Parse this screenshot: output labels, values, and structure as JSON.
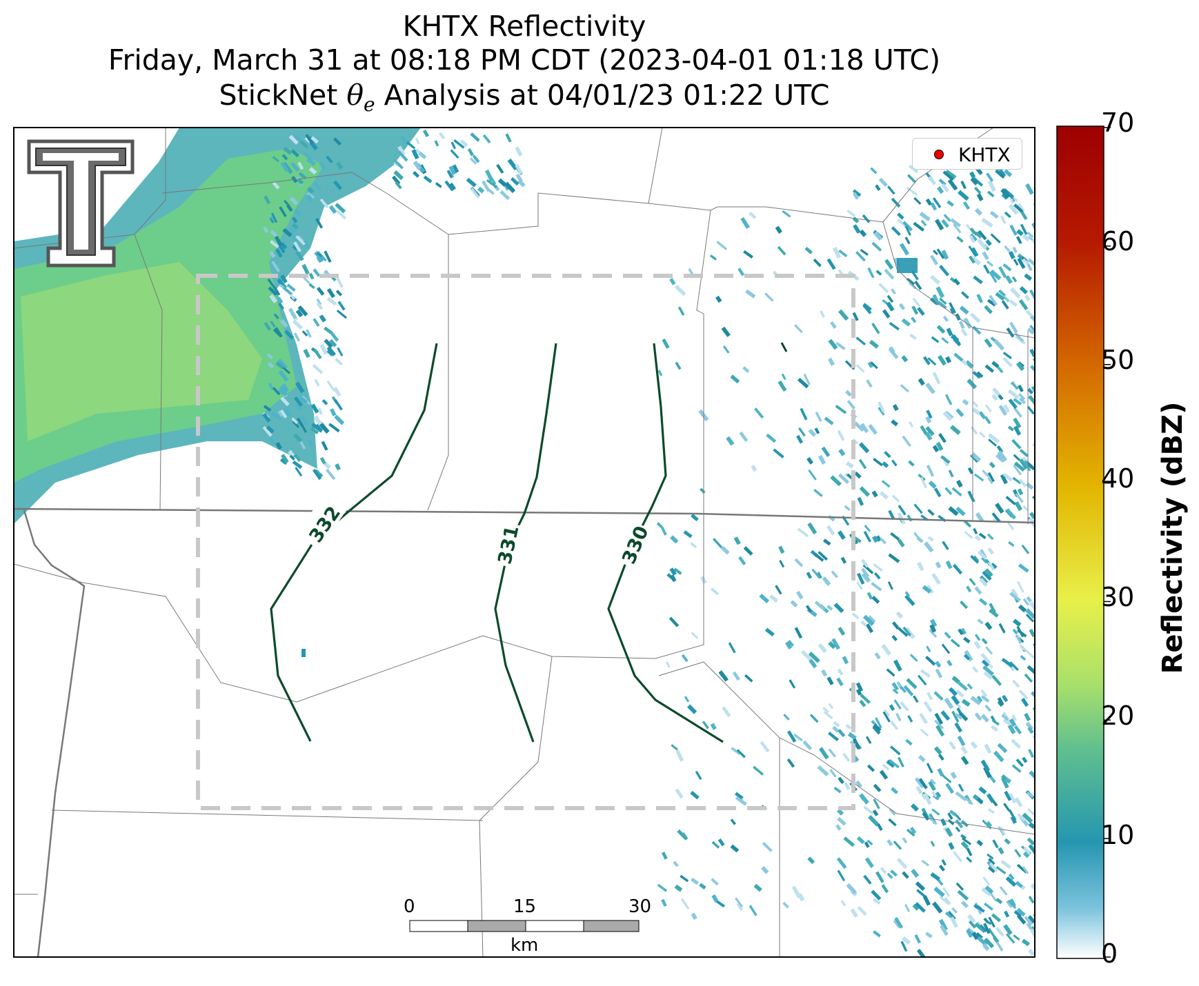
{
  "title": {
    "line1": "KHTX Reflectivity",
    "line2": "Friday, March 31 at 08:18 PM CDT (2023-04-01 01:18 UTC)",
    "line3_prefix": "StickNet",
    "line3_symbol": "θ",
    "line3_subscript": "e",
    "line3_suffix": "Analysis at 04/01/23 01:22 UTC"
  },
  "legend": {
    "label": "KHTX",
    "marker_color": "#ee0000"
  },
  "colorbar": {
    "title": "Reflectivity (dBZ)",
    "ticks": [
      "0",
      "10",
      "20",
      "30",
      "40",
      "50",
      "60",
      "70"
    ],
    "range": [
      0,
      70
    ],
    "colors": [
      "#ffffff",
      "#2596b0",
      "#6fcf85",
      "#e8f04a",
      "#e2b400",
      "#d46a00",
      "#b51a00",
      "#9e0000"
    ]
  },
  "contours": {
    "color": "#0b4a2a",
    "labels": [
      "332",
      "331",
      "330"
    ]
  },
  "analysis_box": {
    "style": "dashed",
    "color": "#c8c8c8"
  },
  "scale_bar": {
    "ticks": [
      "0",
      "15",
      "30"
    ],
    "unit": "km"
  },
  "logo": {
    "name": "Texas Tech double-T",
    "text": "T"
  },
  "colors": {
    "background": "#ffffff",
    "border": "#000000",
    "county_lines": "#777777",
    "state_lines": "#777777",
    "reflectivity_green": "#6fcf85",
    "reflectivity_teal": "#2596b0"
  }
}
